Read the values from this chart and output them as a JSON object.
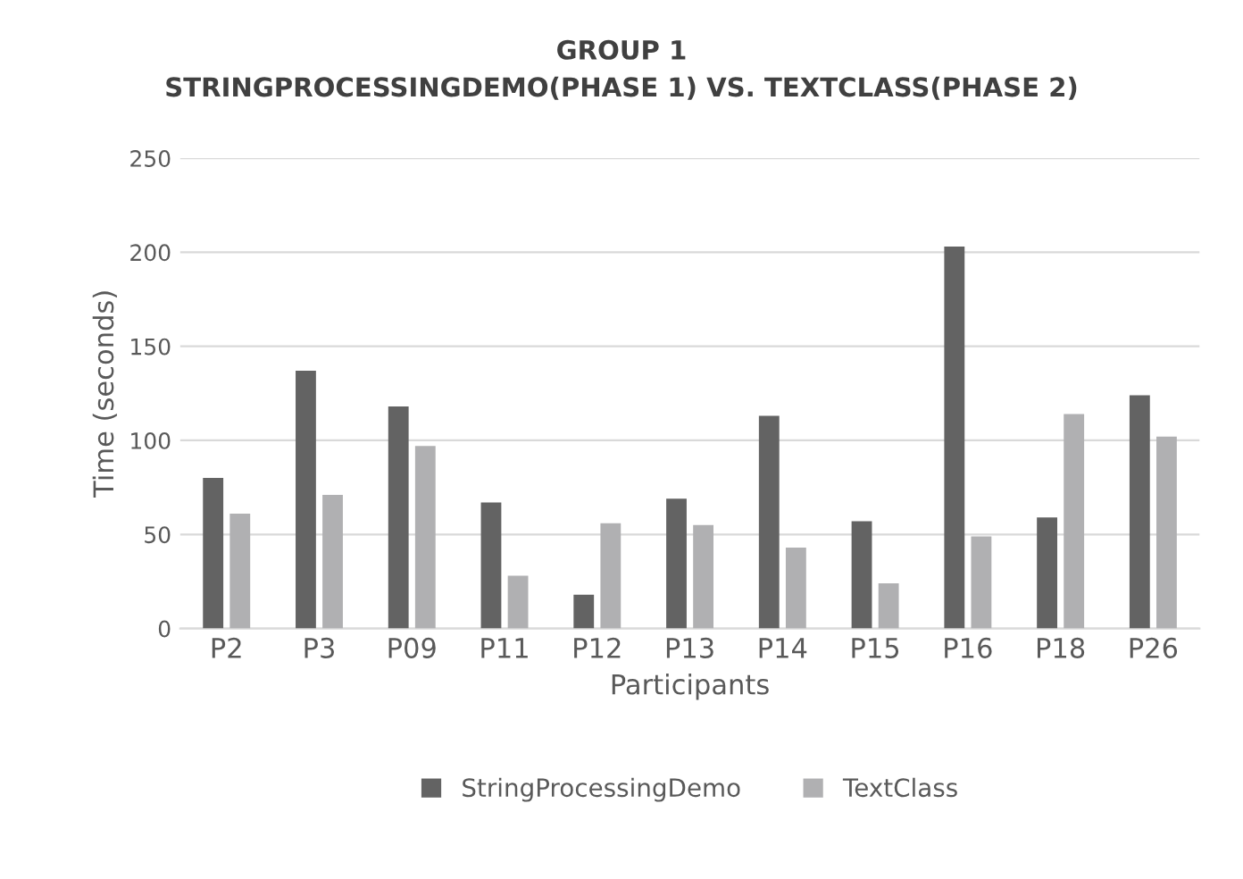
{
  "chart_data": {
    "type": "bar",
    "title": "GROUP 1\nSTRINGPROCESSINGDEMO(PHASE 1) VS. TEXTCLASS(PHASE 2)",
    "xlabel": "Participants",
    "ylabel": "Time (seconds)",
    "categories": [
      "P2",
      "P3",
      "P09",
      "P11",
      "P12",
      "P13",
      "P14",
      "P15",
      "P16",
      "P18",
      "P26"
    ],
    "series": [
      {
        "name": "StringProcessingDemo",
        "color": "#636363",
        "values": [
          80,
          137,
          118,
          67,
          18,
          69,
          113,
          57,
          203,
          59,
          124
        ]
      },
      {
        "name": "TextClass",
        "color": "#b0b0b2",
        "values": [
          61,
          71,
          97,
          28,
          56,
          55,
          43,
          24,
          49,
          114,
          102
        ]
      }
    ],
    "ylim": [
      0,
      250
    ],
    "yticks": [
      0,
      50,
      100,
      150,
      200,
      250
    ],
    "grid": "y",
    "legend": "bottom"
  }
}
